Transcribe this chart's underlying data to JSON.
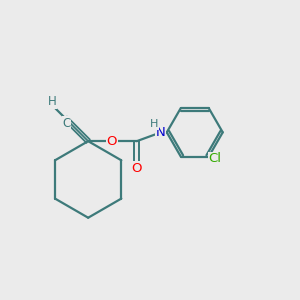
{
  "background_color": "#ebebeb",
  "bond_color": "#3d7a7a",
  "atom_colors": {
    "O": "#ff0000",
    "N": "#0000cc",
    "Cl": "#33aa00",
    "C": "#3d7a7a",
    "H": "#3d7a7a"
  },
  "figsize": [
    3.0,
    3.0
  ],
  "dpi": 100,
  "bond_lw": 1.6
}
